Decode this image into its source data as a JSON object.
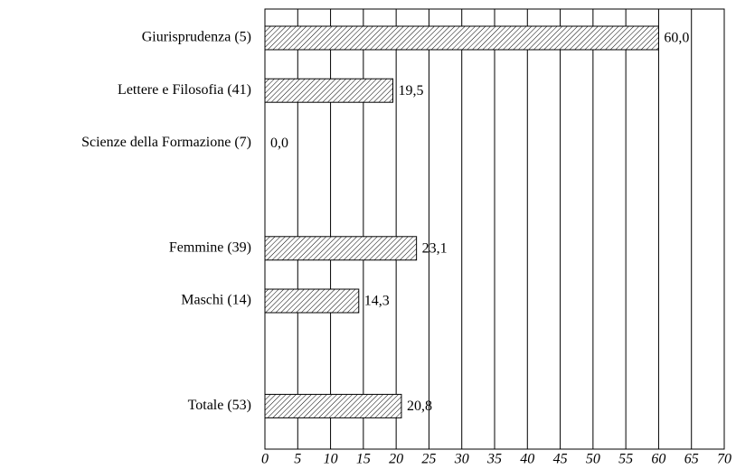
{
  "chart_data": {
    "type": "bar",
    "orientation": "horizontal",
    "categories": [
      "Giurisprudenza (5)",
      "Lettere e Filosofia (41)",
      "Scienze della Formazione (7)",
      null,
      "Femmine (39)",
      "Maschi (14)",
      null,
      "Totale (53)"
    ],
    "values": [
      60.0,
      19.5,
      0.0,
      null,
      23.1,
      14.3,
      null,
      20.8
    ],
    "value_labels": [
      "60,0",
      "19,5",
      "0,0",
      null,
      "23,1",
      "14,3",
      null,
      "20,8"
    ],
    "color": "hatched",
    "xlim": [
      0,
      70
    ],
    "xticks": [
      0,
      5,
      10,
      15,
      20,
      25,
      30,
      35,
      40,
      45,
      50,
      55,
      60,
      65,
      70
    ],
    "grid": true
  }
}
